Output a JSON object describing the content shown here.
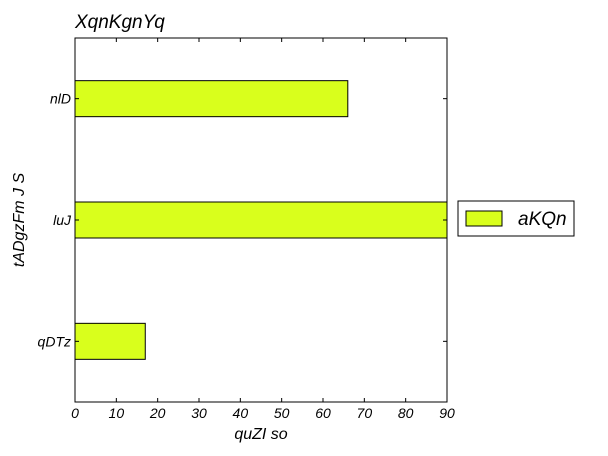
{
  "chart_data": {
    "type": "bar",
    "orientation": "horizontal",
    "title": "XqnKgnYq",
    "xlabel": "quZI so",
    "ylabel": "tADgzFm J S",
    "categories": [
      "nlD",
      "luJ",
      "qDTz"
    ],
    "series": [
      {
        "name": "aKQn",
        "values": [
          66,
          90,
          17
        ],
        "color": "#d9ff1c"
      }
    ],
    "xlim": [
      0,
      90
    ],
    "xticks": [
      0,
      10,
      20,
      30,
      40,
      50,
      60,
      70,
      80,
      90
    ],
    "grid": false,
    "legend_position": "outside-right"
  }
}
